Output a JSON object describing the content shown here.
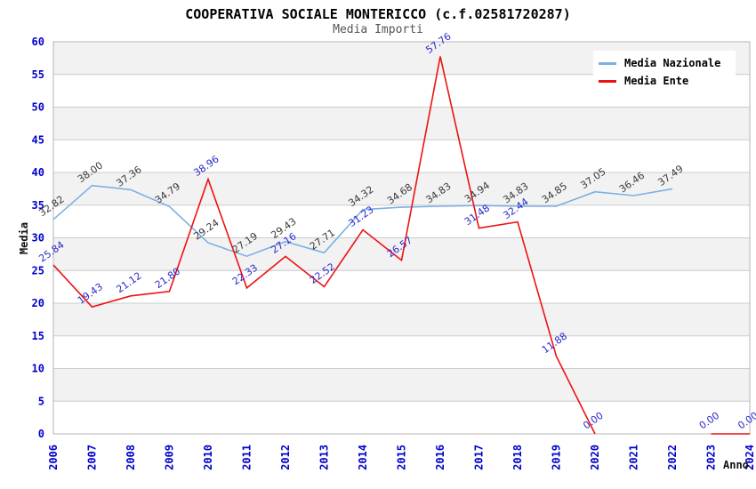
{
  "header": {
    "title": "COOPERATIVA SOCIALE MONTERICCO (c.f.02581720287)",
    "subtitle": "Media Importi"
  },
  "legend": {
    "items": [
      {
        "label": "Media Nazionale",
        "color": "#7cb0e4"
      },
      {
        "label": "Media Ente",
        "color": "#ee1111"
      }
    ]
  },
  "chart_data": {
    "type": "line",
    "title": "COOPERATIVA SOCIALE MONTERICCO (c.f.02581720287)",
    "subtitle": "Media Importi",
    "x": [
      2006,
      2007,
      2008,
      2009,
      2010,
      2011,
      2012,
      2013,
      2014,
      2015,
      2016,
      2017,
      2018,
      2019,
      2020,
      2021,
      2022,
      2023,
      2024
    ],
    "series": [
      {
        "name": "Media Nazionale",
        "color": "#7cb0e4",
        "label_color": "#3a3a3a",
        "values": [
          32.82,
          38.0,
          37.36,
          34.79,
          29.24,
          27.19,
          29.43,
          27.71,
          34.32,
          34.68,
          34.83,
          34.94,
          34.83,
          34.85,
          37.05,
          36.46,
          37.49,
          null,
          null
        ]
      },
      {
        "name": "Media Ente",
        "color": "#ee1111",
        "label_color": "#2a2acd",
        "values": [
          25.84,
          19.43,
          21.12,
          21.8,
          38.96,
          22.33,
          27.16,
          22.52,
          31.23,
          26.57,
          57.76,
          31.48,
          32.44,
          11.88,
          0.0,
          null,
          null,
          0.0,
          0.0
        ]
      }
    ],
    "xlabel": "Anno",
    "ylabel": "Media",
    "ylim": [
      0,
      60
    ],
    "ytick_step": 5,
    "yticks": [
      0,
      5,
      10,
      15,
      20,
      25,
      30,
      35,
      40,
      45,
      50,
      55,
      60
    ],
    "grid": "horizontal",
    "band_fill": true,
    "band_color": "#f2f2f2",
    "grid_color": "#cccccc",
    "border_color": "#b5b5b5",
    "tick_label_color": "#0000cc",
    "label_decimals": 2,
    "legend_position": "top-right"
  }
}
